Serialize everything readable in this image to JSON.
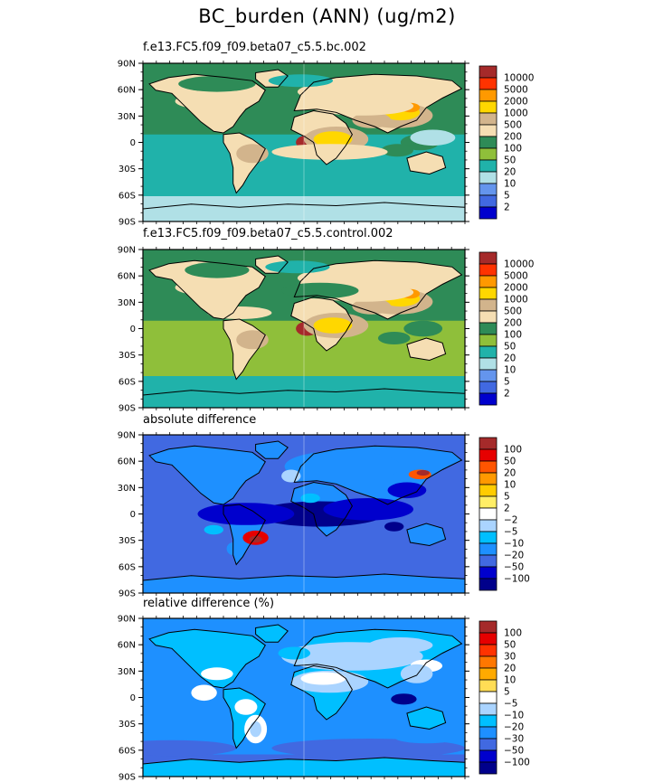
{
  "figure": {
    "title": "BC_burden (ANN) (ug/m2)"
  },
  "panels": [
    {
      "title": "f.e13.FC5.f09_f09.beta07_c5.5.bc.002",
      "lat_labels": [
        "90N",
        "60N",
        "30N",
        "0",
        "30S",
        "60S",
        "90S"
      ],
      "colorbar_labels": [
        "10000",
        "5000",
        "2000",
        "1000",
        "500",
        "200",
        "100",
        "50",
        "20",
        "10",
        "5",
        "2"
      ],
      "colors": [
        "#a52a2a",
        "#ff3300",
        "#ff9900",
        "#ffd700",
        "#d2b48c",
        "#f5deb3",
        "#2e8b57",
        "#8fbf3a",
        "#20b2aa",
        "#b0e0e6",
        "#6495ed",
        "#4169e1",
        "#0000cd"
      ],
      "ocean": "#20b2aa",
      "land": "#f5deb3"
    },
    {
      "title": "f.e13.FC5.f09_f09.beta07_c5.5.control.002",
      "lat_labels": [
        "90N",
        "60N",
        "30N",
        "0",
        "30S",
        "60S",
        "90S"
      ],
      "colorbar_labels": [
        "10000",
        "5000",
        "2000",
        "1000",
        "500",
        "200",
        "100",
        "50",
        "20",
        "10",
        "5",
        "2"
      ],
      "colors": [
        "#a52a2a",
        "#ff3300",
        "#ff9900",
        "#ffd700",
        "#d2b48c",
        "#f5deb3",
        "#2e8b57",
        "#8fbf3a",
        "#20b2aa",
        "#b0e0e6",
        "#6495ed",
        "#4169e1",
        "#0000cd"
      ],
      "ocean": "#8fbf3a",
      "land": "#f5deb3"
    },
    {
      "title": "absolute difference",
      "lat_labels": [
        "90N",
        "60N",
        "30N",
        "0",
        "30S",
        "60S",
        "90S"
      ],
      "colorbar_labels": [
        "100",
        "50",
        "20",
        "10",
        "5",
        "2",
        "−2",
        "−5",
        "−10",
        "−20",
        "−50",
        "−100"
      ],
      "colors": [
        "#a52a2a",
        "#e60000",
        "#ff5500",
        "#ff9900",
        "#ffcc00",
        "#ffee66",
        "#ffffff",
        "#aad4ff",
        "#00bfff",
        "#1e90ff",
        "#4169e1",
        "#0000cd",
        "#00008b"
      ],
      "ocean": "#4169e1",
      "land": "#1e90ff"
    },
    {
      "title": "relative difference (%)",
      "lat_labels": [
        "90N",
        "60N",
        "30N",
        "0",
        "30S",
        "60S",
        "90S"
      ],
      "colorbar_labels": [
        "100",
        "50",
        "30",
        "20",
        "10",
        "5",
        "−5",
        "−10",
        "−20",
        "−30",
        "−50",
        "−100"
      ],
      "colors": [
        "#a52a2a",
        "#e60000",
        "#ff3300",
        "#ff7700",
        "#ffaa00",
        "#ffdd55",
        "#ffffff",
        "#aad4ff",
        "#00bfff",
        "#1e90ff",
        "#4169e1",
        "#0000cd",
        "#00008b"
      ],
      "ocean": "#1e90ff",
      "land": "#00bfff"
    }
  ]
}
